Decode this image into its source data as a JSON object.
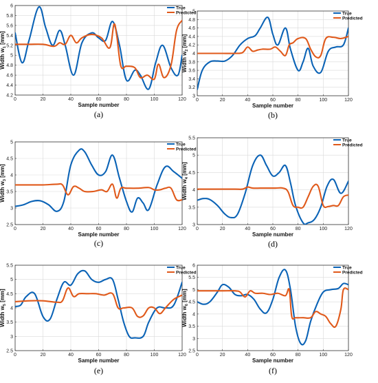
{
  "colors": {
    "true": "#0b63b6",
    "predicted": "#e0591a"
  },
  "legend": {
    "true_label": "True",
    "predicted_label": "Predicted"
  },
  "chart_data": [
    {
      "type": "line",
      "panel": "(a)",
      "xlabel": "Sample number",
      "ylabel": "Width  w",
      "ylabel_sub": "1",
      "ylabel_unit": "[mm]",
      "xlim": [
        0,
        120
      ],
      "ylim": [
        4.2,
        6
      ],
      "xticks": [
        0,
        20,
        40,
        60,
        80,
        100,
        120
      ],
      "yticks": [
        4.2,
        4.4,
        4.6,
        4.8,
        5,
        5.2,
        5.4,
        5.6,
        5.8,
        6
      ],
      "legend_position": "top-right",
      "grid": true,
      "series": [
        {
          "name": "True",
          "x": [
            0,
            5,
            10,
            17,
            22,
            27,
            32,
            36,
            42,
            48,
            55,
            60,
            65,
            70,
            75,
            80,
            86,
            90,
            96,
            101,
            106,
            112,
            117,
            120
          ],
          "y": [
            5.45,
            4.85,
            5.3,
            5.97,
            5.55,
            5.2,
            5.5,
            5.2,
            4.6,
            5.25,
            5.45,
            5.35,
            5.3,
            5.68,
            5.2,
            4.5,
            4.7,
            4.6,
            4.32,
            4.85,
            5.2,
            4.75,
            4.6,
            5.0
          ]
        },
        {
          "name": "Predicted",
          "x": [
            0,
            10,
            20,
            28,
            32,
            36,
            40,
            44,
            48,
            55,
            62,
            68,
            71,
            73,
            76,
            80,
            86,
            90,
            95,
            100,
            103,
            107,
            112,
            116,
            120
          ],
          "y": [
            5.22,
            5.22,
            5.22,
            5.18,
            5.25,
            5.22,
            5.4,
            5.25,
            5.35,
            5.42,
            5.35,
            5.15,
            5.62,
            5.4,
            4.78,
            4.78,
            4.75,
            4.55,
            4.6,
            4.52,
            4.82,
            4.55,
            4.8,
            5.5,
            5.7
          ]
        }
      ]
    },
    {
      "type": "line",
      "panel": "(b)",
      "xlabel": "Sample number",
      "ylabel": "Width  w",
      "ylabel_sub": "2",
      "ylabel_unit": "[mm]",
      "xlim": [
        0,
        120
      ],
      "ylim": [
        3,
        5
      ],
      "xticks": [
        0,
        20,
        40,
        60,
        80,
        100,
        120
      ],
      "yticks": [
        3,
        3.2,
        3.4,
        3.6,
        3.8,
        4,
        4.2,
        4.4,
        4.6,
        4.8,
        5
      ],
      "legend_position": "top-right",
      "grid": true,
      "series": [
        {
          "name": "True",
          "x": [
            0,
            4,
            10,
            16,
            22,
            28,
            34,
            40,
            46,
            50,
            56,
            60,
            64,
            70,
            74,
            80,
            84,
            88,
            92,
            98,
            104,
            110,
            116,
            120
          ],
          "y": [
            3.15,
            3.6,
            3.8,
            3.82,
            3.82,
            3.95,
            4.2,
            4.35,
            4.42,
            4.6,
            4.85,
            4.45,
            4.2,
            4.6,
            4.1,
            3.6,
            3.8,
            4.12,
            3.7,
            3.55,
            4.05,
            4.15,
            4.2,
            4.6
          ]
        },
        {
          "name": "Predicted",
          "x": [
            0,
            10,
            20,
            30,
            36,
            40,
            44,
            48,
            52,
            58,
            62,
            66,
            70,
            73,
            76,
            80,
            86,
            90,
            94,
            98,
            102,
            108,
            114,
            120
          ],
          "y": [
            4.0,
            4.0,
            4.0,
            4.0,
            4.02,
            4.15,
            4.05,
            4.08,
            4.1,
            4.1,
            4.15,
            4.05,
            3.95,
            4.2,
            4.25,
            4.35,
            4.35,
            4.1,
            3.92,
            3.95,
            4.35,
            4.38,
            4.35,
            4.4
          ]
        }
      ]
    },
    {
      "type": "line",
      "panel": "(c)",
      "xlabel": "Sample number",
      "ylabel": "Width  w",
      "ylabel_sub": "3",
      "ylabel_unit": "[mm]",
      "xlim": [
        0,
        120
      ],
      "ylim": [
        2.5,
        5
      ],
      "xticks": [
        0,
        20,
        40,
        60,
        80,
        100,
        120
      ],
      "yticks": [
        2.5,
        3,
        3.5,
        4,
        4.5,
        5
      ],
      "legend_position": "top-right",
      "grid": true,
      "series": [
        {
          "name": "True",
          "x": [
            0,
            6,
            12,
            18,
            24,
            30,
            35,
            40,
            46,
            50,
            55,
            60,
            65,
            70,
            75,
            80,
            84,
            88,
            92,
            96,
            102,
            108,
            114,
            120
          ],
          "y": [
            3.05,
            3.1,
            3.2,
            3.22,
            3.1,
            2.9,
            3.2,
            4.3,
            4.75,
            4.7,
            4.3,
            4.0,
            4.1,
            4.6,
            3.9,
            3.2,
            2.88,
            3.3,
            3.15,
            2.95,
            3.7,
            4.25,
            4.1,
            3.9
          ]
        },
        {
          "name": "Predicted",
          "x": [
            0,
            10,
            20,
            30,
            34,
            38,
            42,
            46,
            50,
            56,
            62,
            66,
            70,
            73,
            76,
            80,
            88,
            96,
            100,
            104,
            108,
            112,
            116,
            120
          ],
          "y": [
            3.7,
            3.7,
            3.7,
            3.72,
            3.7,
            3.4,
            3.65,
            3.6,
            3.5,
            3.5,
            3.55,
            3.5,
            3.72,
            3.3,
            3.6,
            3.6,
            3.6,
            3.62,
            3.55,
            3.55,
            3.6,
            3.6,
            3.25,
            3.25
          ]
        }
      ]
    },
    {
      "type": "line",
      "panel": "(d)",
      "xlabel": "Sample number",
      "ylabel": "Width  w",
      "ylabel_sub": "4",
      "ylabel_unit": "[mm]",
      "xlim": [
        0,
        120
      ],
      "ylim": [
        3,
        5.5
      ],
      "xticks": [
        0,
        20,
        40,
        60,
        80,
        100,
        120
      ],
      "yticks": [
        3,
        3.5,
        4,
        4.5,
        5,
        5.5
      ],
      "legend_position": "top-right",
      "grid": true,
      "series": [
        {
          "name": "True",
          "x": [
            0,
            5,
            10,
            16,
            22,
            27,
            32,
            38,
            44,
            50,
            55,
            60,
            65,
            70,
            74,
            78,
            84,
            88,
            93,
            98,
            103,
            108,
            114,
            120
          ],
          "y": [
            3.7,
            3.75,
            3.72,
            3.55,
            3.3,
            3.2,
            3.3,
            3.9,
            4.7,
            5.0,
            4.7,
            4.4,
            4.5,
            4.7,
            4.2,
            3.55,
            3.05,
            3.05,
            3.15,
            3.5,
            4.1,
            4.3,
            3.9,
            4.25
          ]
        },
        {
          "name": "Predicted",
          "x": [
            0,
            10,
            20,
            30,
            36,
            40,
            44,
            50,
            56,
            62,
            68,
            72,
            76,
            80,
            84,
            88,
            92,
            96,
            100,
            104,
            108,
            112,
            116,
            120
          ],
          "y": [
            4.02,
            4.02,
            4.02,
            4.02,
            4.02,
            4.08,
            4.05,
            4.05,
            4.05,
            4.05,
            4.05,
            3.95,
            3.55,
            3.5,
            3.5,
            3.8,
            4.1,
            4.1,
            3.55,
            3.52,
            3.55,
            3.55,
            3.8,
            3.85
          ]
        }
      ]
    },
    {
      "type": "line",
      "panel": "(e)",
      "xlabel": "Sample number",
      "ylabel": "Width  w",
      "ylabel_sub": "5",
      "ylabel_unit": "[mm]",
      "xlim": [
        0,
        120
      ],
      "ylim": [
        2.5,
        5.5
      ],
      "xticks": [
        0,
        20,
        40,
        60,
        80,
        100,
        120
      ],
      "yticks": [
        2.5,
        3,
        3.5,
        4,
        4.5,
        5,
        5.5
      ],
      "legend_position": "top-right",
      "grid": true,
      "series": [
        {
          "name": "True",
          "x": [
            0,
            4,
            8,
            14,
            20,
            25,
            30,
            35,
            40,
            45,
            50,
            55,
            60,
            65,
            70,
            74,
            78,
            82,
            86,
            92,
            96,
            102,
            108,
            114,
            120
          ],
          "y": [
            4.05,
            4.1,
            4.4,
            4.5,
            3.7,
            3.6,
            4.3,
            4.9,
            4.8,
            5.2,
            5.3,
            5.0,
            4.9,
            5.0,
            5.0,
            4.3,
            3.5,
            3.0,
            2.95,
            3.0,
            3.5,
            4.0,
            4.0,
            4.1,
            4.9
          ]
        },
        {
          "name": "Predicted",
          "x": [
            0,
            10,
            20,
            30,
            34,
            38,
            42,
            46,
            52,
            58,
            64,
            70,
            74,
            78,
            84,
            88,
            92,
            96,
            100,
            104,
            108,
            114,
            120
          ],
          "y": [
            4.22,
            4.25,
            4.25,
            4.2,
            4.25,
            4.7,
            4.4,
            4.5,
            4.5,
            4.5,
            4.45,
            4.5,
            4.0,
            4.0,
            4.0,
            3.7,
            3.72,
            4.0,
            4.0,
            3.8,
            4.0,
            4.3,
            4.45
          ]
        }
      ]
    },
    {
      "type": "line",
      "panel": "(f)",
      "xlabel": "Sample number",
      "ylabel": "Width  w",
      "ylabel_sub": "6",
      "ylabel_unit": "[mm]",
      "xlim": [
        0,
        120
      ],
      "ylim": [
        2.5,
        6
      ],
      "xticks": [
        0,
        20,
        40,
        60,
        80,
        100,
        120
      ],
      "yticks": [
        2.5,
        3,
        3.5,
        4,
        4.5,
        5,
        5.5,
        6
      ],
      "legend_position": "top-right",
      "grid": true,
      "series": [
        {
          "name": "True",
          "x": [
            0,
            5,
            10,
            16,
            20,
            25,
            30,
            35,
            40,
            45,
            50,
            55,
            60,
            65,
            70,
            74,
            78,
            82,
            86,
            90,
            95,
            100,
            106,
            112,
            116,
            120
          ],
          "y": [
            4.5,
            4.4,
            4.5,
            4.9,
            5.2,
            5.1,
            4.8,
            4.75,
            4.8,
            4.6,
            4.2,
            4.05,
            4.6,
            5.5,
            5.8,
            5.0,
            3.5,
            2.8,
            2.9,
            3.7,
            4.4,
            4.9,
            5.0,
            5.05,
            5.25,
            5.2
          ]
        },
        {
          "name": "Predicted",
          "x": [
            0,
            10,
            20,
            30,
            34,
            38,
            42,
            46,
            52,
            58,
            64,
            70,
            73,
            75,
            78,
            84,
            90,
            94,
            98,
            102,
            106,
            110,
            114,
            116,
            120
          ],
          "y": [
            4.95,
            4.95,
            4.95,
            4.95,
            4.9,
            4.7,
            4.95,
            4.85,
            4.85,
            4.8,
            4.85,
            4.75,
            5.0,
            3.9,
            3.85,
            3.85,
            3.85,
            4.1,
            4.0,
            3.9,
            3.6,
            3.5,
            4.2,
            5.0,
            5.0
          ]
        }
      ]
    }
  ]
}
